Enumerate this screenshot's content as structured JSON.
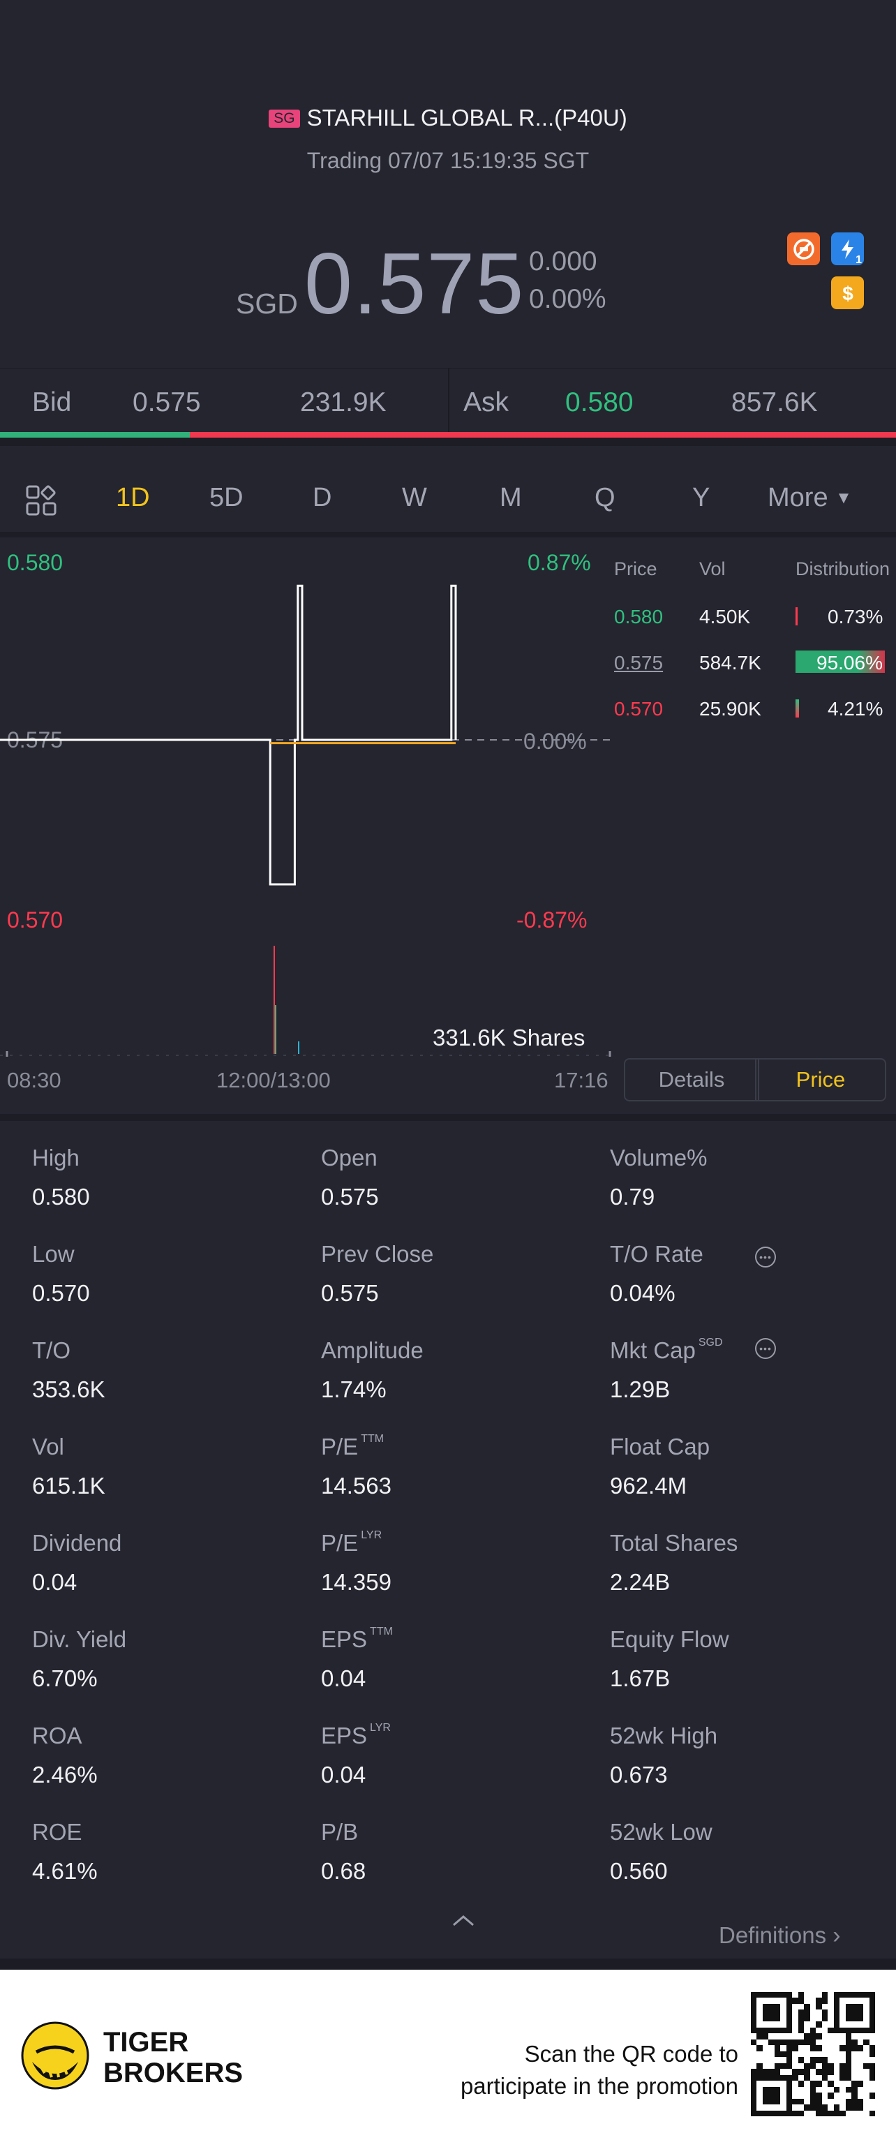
{
  "header": {
    "market_tag": "SG",
    "stock_name": "STARHILL GLOBAL R...(P40U)",
    "status": "Trading 07/07 15:19:35 SGT",
    "currency": "SGD",
    "price": "0.575",
    "change": "0.000",
    "change_pct": "0.00%"
  },
  "icons": [
    "no-short-icon",
    "lightning-icon",
    "dollar-icon"
  ],
  "lightning_badge_sub": "1",
  "bidask": {
    "bid_label": "Bid",
    "bid_price": "0.575",
    "bid_vol": "231.9K",
    "ask_label": "Ask",
    "ask_price": "0.580",
    "ask_vol": "857.6K",
    "bid_ratio": 0.212
  },
  "tabs": [
    "1D",
    "5D",
    "D",
    "W",
    "M",
    "Q",
    "Y",
    "More"
  ],
  "active_tab": "1D",
  "chart": {
    "y_top": "0.580",
    "y_top_pct": "0.87%",
    "y_mid": "0.575",
    "y_mid_pct": "0.00%",
    "y_bot": "0.570",
    "y_bot_pct": "-0.87%",
    "volume_label": "331.6K Shares",
    "x_labels": [
      "08:30",
      "12:00/13:00",
      "17:16"
    ]
  },
  "chart_data": {
    "type": "line",
    "ylim": [
      0.57,
      0.58
    ],
    "series": [
      {
        "points": [
          [
            0,
            0.575
          ],
          [
            0.44,
            0.575
          ],
          [
            0.44,
            0.5705
          ],
          [
            0.48,
            0.5705
          ],
          [
            0.48,
            0.575
          ],
          [
            0.485,
            0.575
          ],
          [
            0.485,
            0.5798
          ],
          [
            0.492,
            0.5798
          ],
          [
            0.492,
            0.575
          ],
          [
            0.735,
            0.575
          ],
          [
            0.735,
            0.5798
          ],
          [
            0.742,
            0.5798
          ],
          [
            0.742,
            0.575
          ]
        ]
      },
      {
        "points": [
          [
            0.44,
            0.5749
          ],
          [
            0.48,
            0.5749
          ],
          [
            0.742,
            0.5749
          ]
        ]
      }
    ]
  },
  "distribution": {
    "headers": [
      "Price",
      "Vol",
      "Distribution"
    ],
    "rows": [
      {
        "price": "0.580",
        "vol": "4.50K",
        "pct": "0.73%",
        "share": 0.0073,
        "color": "#30c07f"
      },
      {
        "price": "0.575",
        "vol": "584.7K",
        "pct": "95.06%",
        "share": 0.9506,
        "color": "#9a9ca8"
      },
      {
        "price": "0.570",
        "vol": "25.90K",
        "pct": "4.21%",
        "share": 0.0421,
        "color": "#ff3a4f"
      }
    ]
  },
  "segments": {
    "details": "Details",
    "price": "Price"
  },
  "stats": [
    {
      "label": "High",
      "value": "0.580"
    },
    {
      "label": "Open",
      "value": "0.575"
    },
    {
      "label": "Volume%",
      "value": "0.79"
    },
    {
      "label": "Low",
      "value": "0.570"
    },
    {
      "label": "Prev Close",
      "value": "0.575"
    },
    {
      "label": "T/O Rate",
      "value": "0.04%"
    },
    {
      "label": "T/O",
      "value": "353.6K"
    },
    {
      "label": "Amplitude",
      "value": "1.74%"
    },
    {
      "label": "Mkt Cap",
      "sup": "SGD",
      "value": "1.29B"
    },
    {
      "label": "Vol",
      "value": "615.1K"
    },
    {
      "label": "P/E",
      "sup": "TTM",
      "value": "14.563"
    },
    {
      "label": "Float Cap",
      "value": "962.4M"
    },
    {
      "label": "Dividend",
      "value": "0.04"
    },
    {
      "label": "P/E",
      "sup": "LYR",
      "value": "14.359"
    },
    {
      "label": "Total Shares",
      "value": "2.24B"
    },
    {
      "label": "Div. Yield",
      "value": "6.70%"
    },
    {
      "label": "EPS",
      "sup": "TTM",
      "value": "0.04"
    },
    {
      "label": "Equity Flow",
      "value": "1.67B"
    },
    {
      "label": "ROA",
      "value": "2.46%"
    },
    {
      "label": "EPS",
      "sup": "LYR",
      "value": "0.04"
    },
    {
      "label": "52wk High",
      "value": "0.673"
    },
    {
      "label": "ROE",
      "value": "4.61%"
    },
    {
      "label": "P/B",
      "value": "0.68"
    },
    {
      "label": "52wk Low",
      "value": "0.560"
    }
  ],
  "definitions": "Definitions",
  "footer": {
    "brand_line1": "TIGER",
    "brand_line2": "BROKERS",
    "promo_line1": "Scan the QR code to",
    "promo_line2": "participate in the promotion"
  }
}
